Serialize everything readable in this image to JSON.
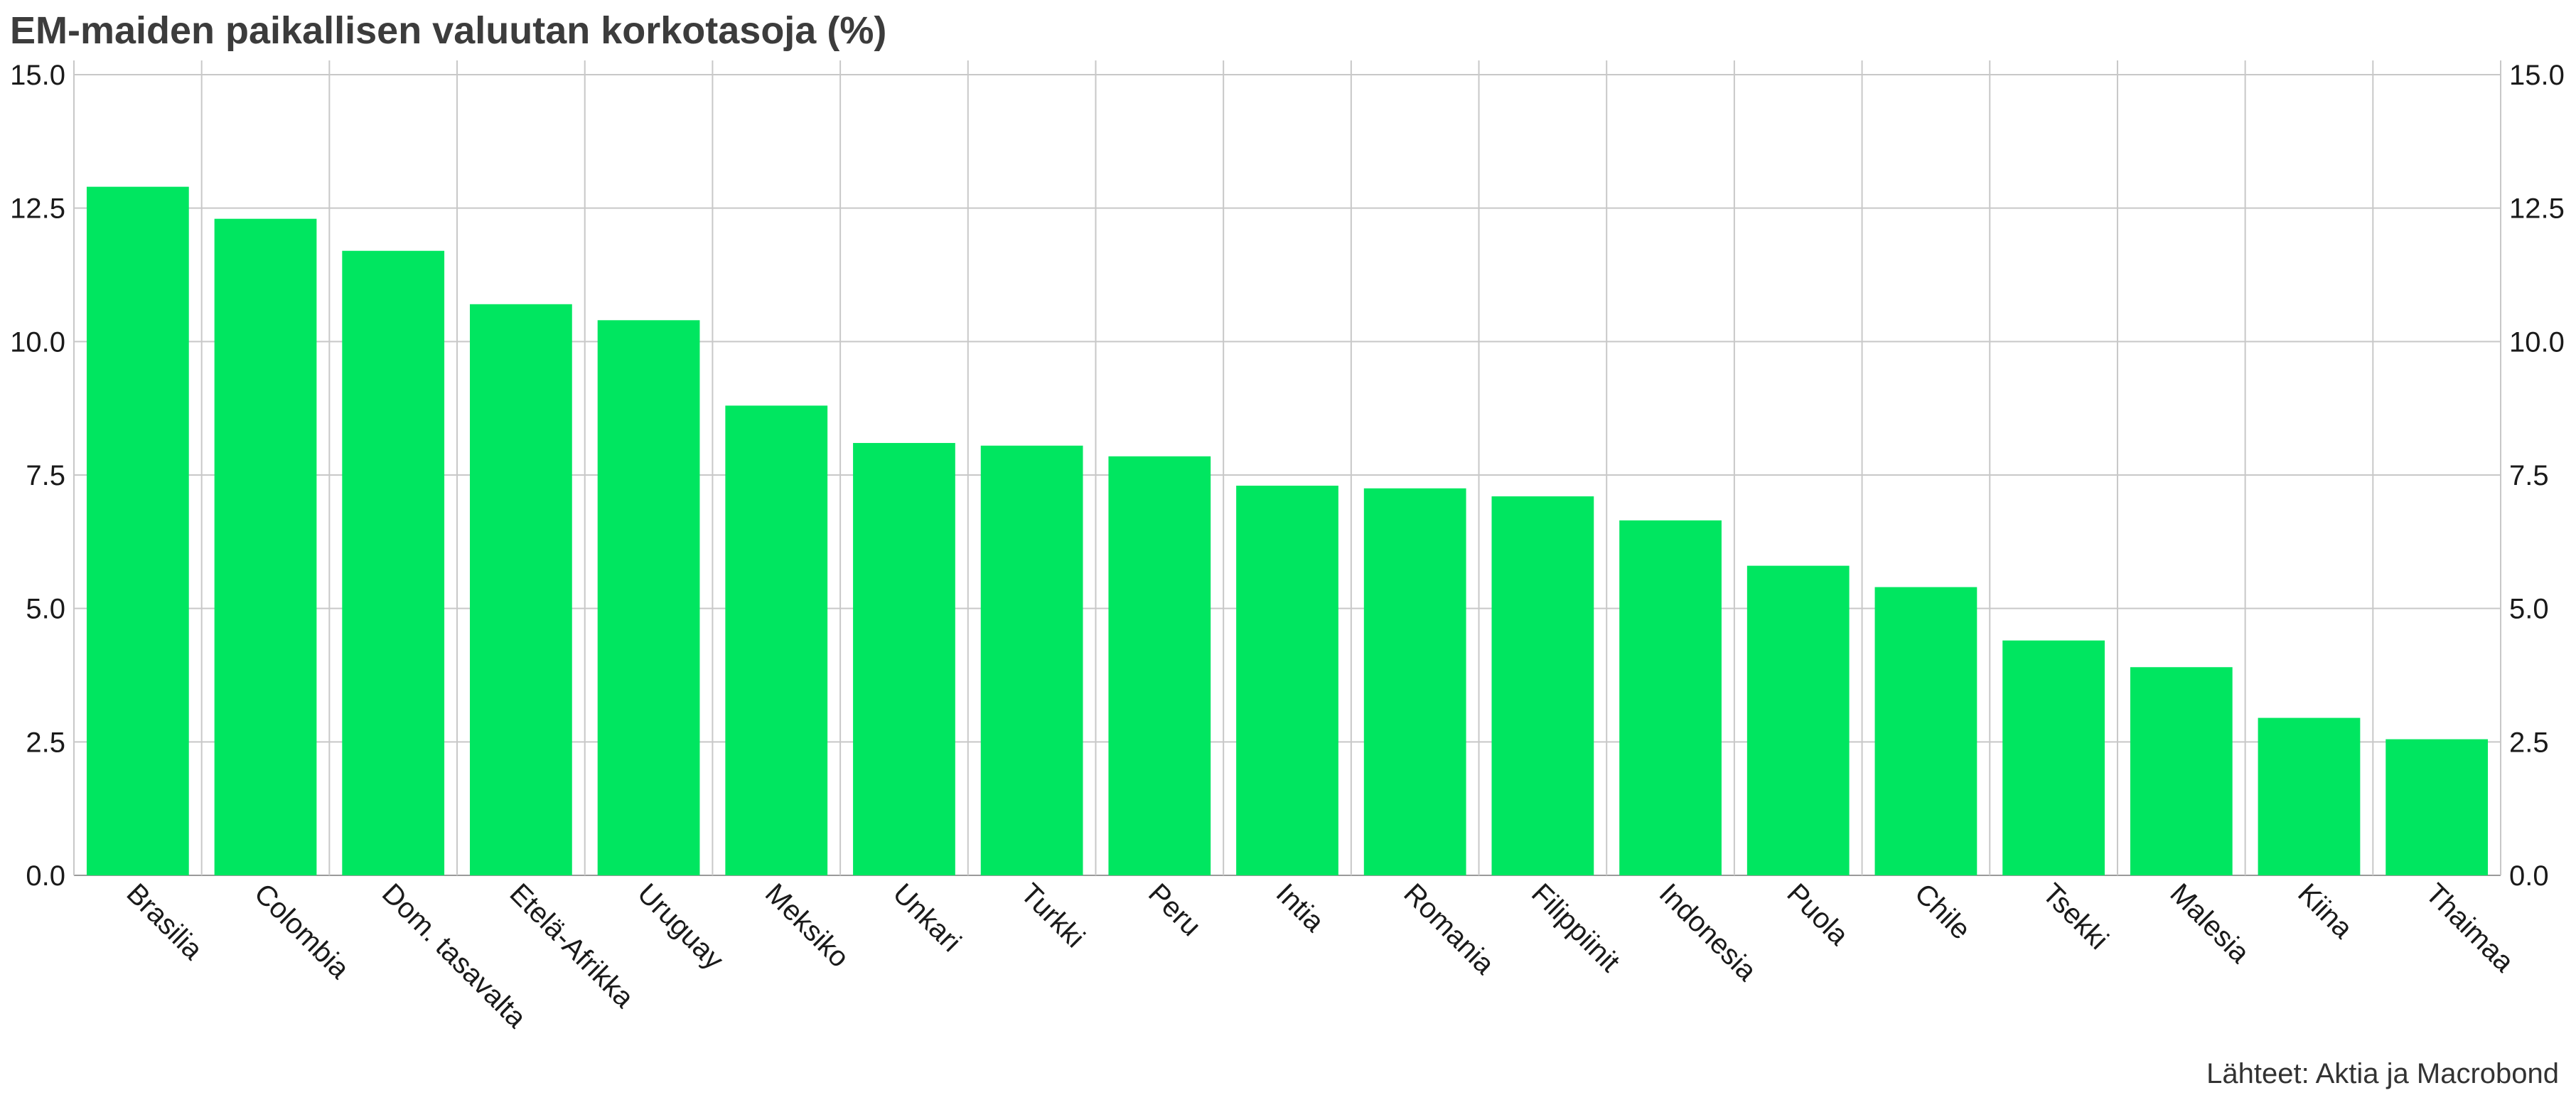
{
  "chart_data": {
    "type": "bar",
    "title": "EM-maiden paikallisen valuutan korkotasoja (%)",
    "source": "Lähteet: Aktia ja Macrobond",
    "categories": [
      "Brasilia",
      "Colombia",
      "Dom. tasavalta",
      "Etelä-Afrikka",
      "Uruguay",
      "Meksiko",
      "Unkari",
      "Turkki",
      "Peru",
      "Intia",
      "Romania",
      "Filippiinit",
      "Indonesia",
      "Puola",
      "Chile",
      "Tsekki",
      "Malesia",
      "Kiina",
      "Thaimaa"
    ],
    "values": [
      12.9,
      12.3,
      11.7,
      10.7,
      10.4,
      8.8,
      8.1,
      8.05,
      7.85,
      7.3,
      7.25,
      7.1,
      6.65,
      5.8,
      5.4,
      4.4,
      3.9,
      2.95,
      2.55
    ],
    "ylim": [
      0,
      15
    ],
    "yticks": [
      "0.0",
      "2.5",
      "5.0",
      "7.5",
      "10.0",
      "12.5",
      "15.0"
    ],
    "ytick_values": [
      0,
      2.5,
      5,
      7.5,
      10,
      12.5,
      15
    ],
    "axes": "left and right",
    "grid": true,
    "bar_color": "#00e660",
    "grid_color": "#c8c8c8"
  }
}
